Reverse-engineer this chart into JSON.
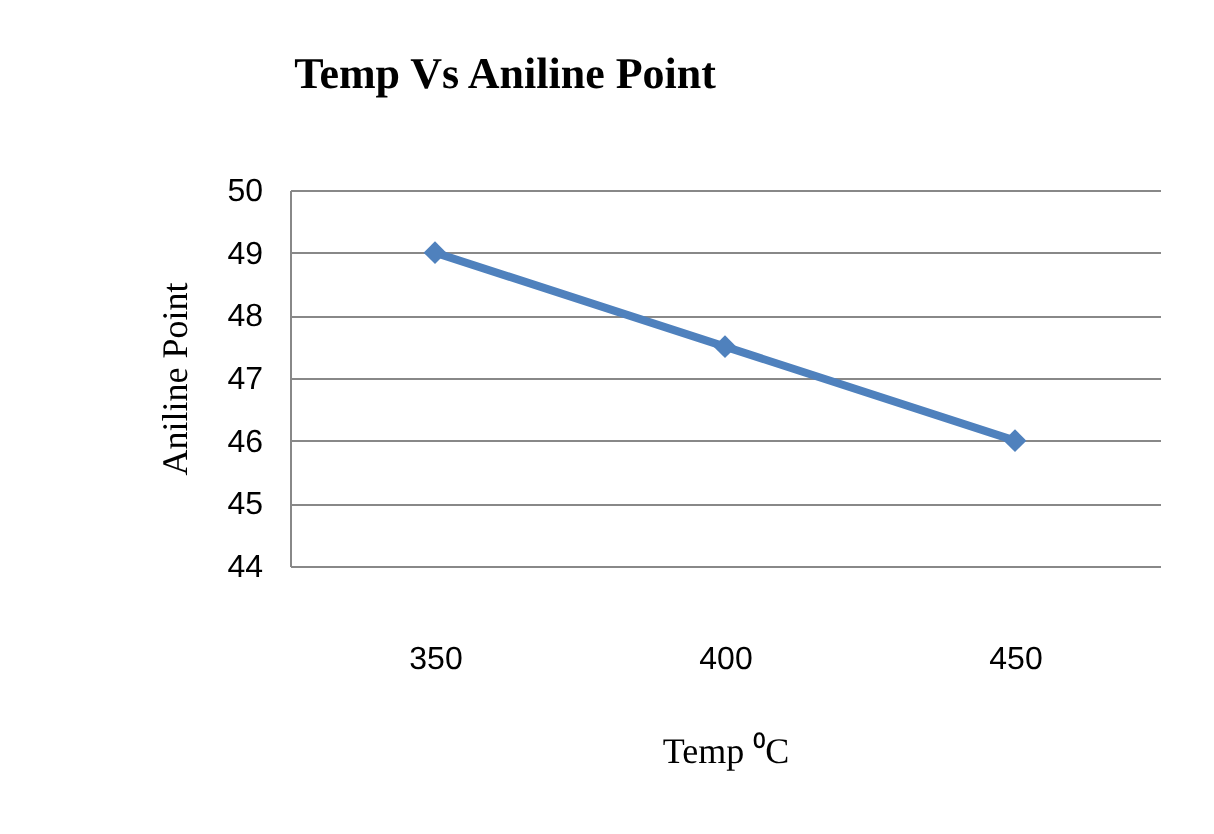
{
  "chart_data": {
    "type": "line",
    "title": "Temp Vs Aniline Point",
    "xlabel": "Temp ⁰C",
    "ylabel": "Aniline Point",
    "categories": [
      "350",
      "400",
      "450"
    ],
    "series": [
      {
        "color": "#4f81bd",
        "values": [
          49,
          47.5,
          46
        ]
      }
    ],
    "ylim": [
      44,
      50
    ],
    "yticks": [
      44,
      45,
      46,
      47,
      48,
      49,
      50
    ],
    "grid": "y",
    "marker": "diamond",
    "line_style": "solid",
    "legend": false
  }
}
